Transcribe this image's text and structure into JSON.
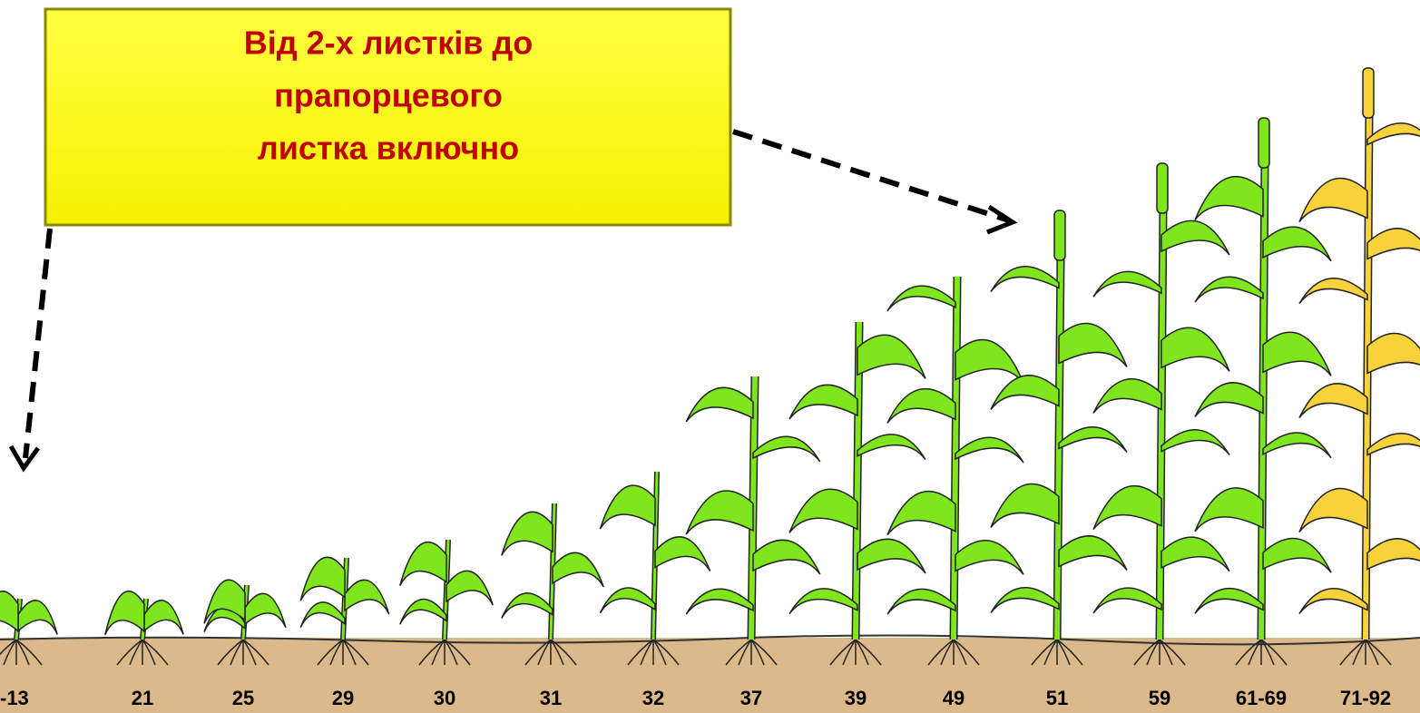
{
  "callout": {
    "lines": [
      "Від 2-х листків до",
      "прапорцевого",
      "листка включно"
    ]
  },
  "stages": [
    "-13",
    "21",
    "25",
    "29",
    "30",
    "31",
    "32",
    "37",
    "39",
    "49",
    "51",
    "59",
    "61-69",
    "71-92"
  ]
}
